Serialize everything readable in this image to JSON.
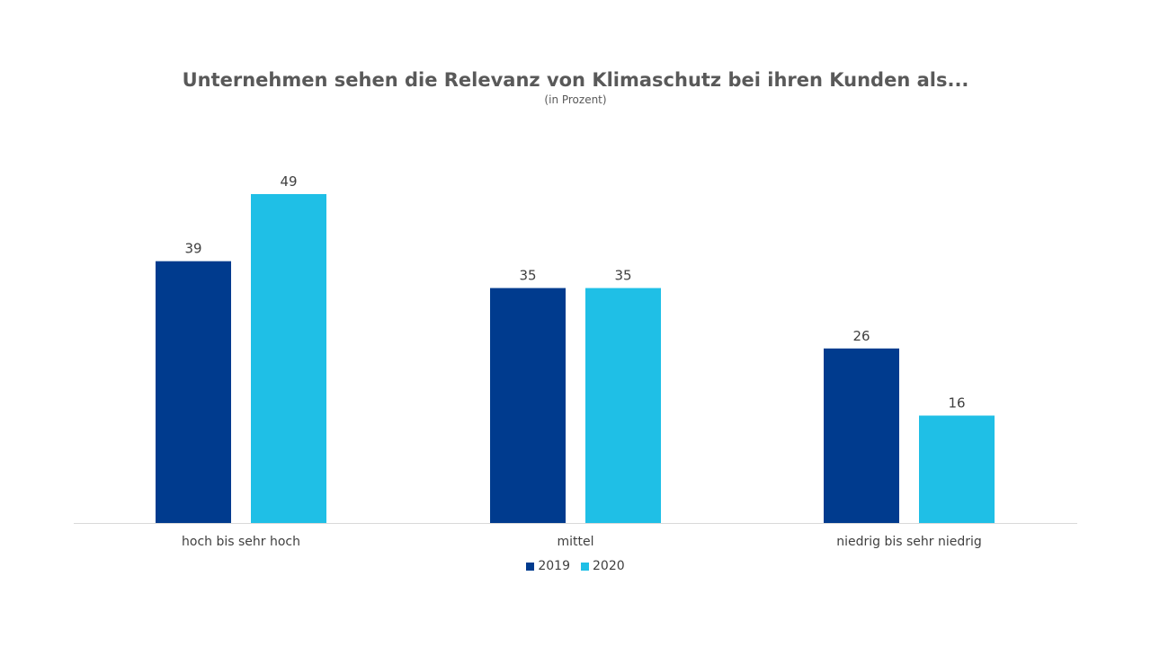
{
  "chart_data": {
    "type": "bar",
    "title": "Unternehmen sehen die Relevanz von Klimaschutz bei ihren Kunden als...",
    "subtitle": "(in Prozent)",
    "categories": [
      "hoch bis sehr hoch",
      "mittel",
      "niedrig bis sehr niedrig"
    ],
    "series": [
      {
        "name": "2019",
        "values": [
          39,
          35,
          26
        ],
        "color": "#003b8e"
      },
      {
        "name": "2020",
        "values": [
          49,
          35,
          16
        ],
        "color": "#1fbfe6"
      }
    ],
    "ylim": [
      0,
      49
    ],
    "grid": false,
    "legend": "bottom-center",
    "data_labels": true
  }
}
